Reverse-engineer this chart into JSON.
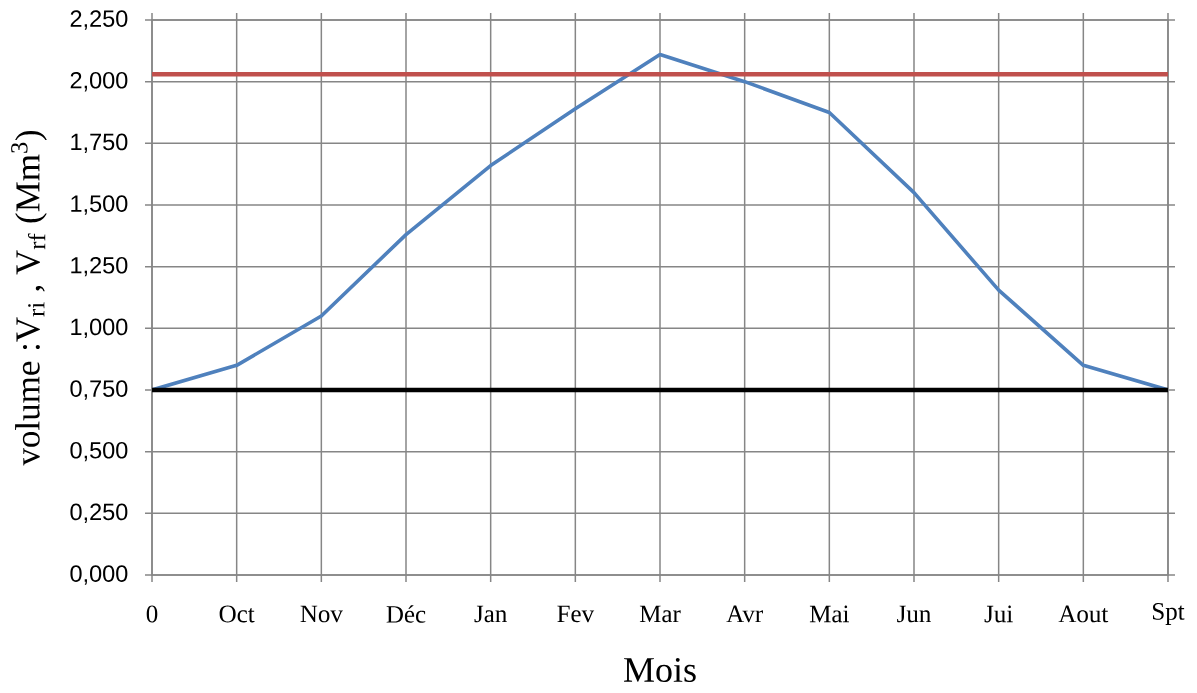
{
  "chart_data": {
    "type": "line",
    "xlabel": "Mois",
    "ylabel": "volume :V$_{ri}$ , V$_{rf}$ (Mm$^{3}$)",
    "categories": [
      "0",
      "Oct",
      "Nov",
      "Déc",
      "Jan",
      "Fev",
      "Mar",
      "Avr",
      "Mai",
      "Jun",
      "Jui",
      "Aout",
      "Spt"
    ],
    "series": [
      {
        "color": "#4f81bd",
        "values": [
          0.75,
          0.85,
          1.05,
          1.38,
          1.66,
          1.89,
          2.11,
          2.0,
          1.875,
          1.55,
          1.155,
          0.85,
          0.75
        ]
      }
    ],
    "ref_lines": [
      {
        "axis": "y",
        "value": 2.03,
        "color": "#c0504d"
      },
      {
        "axis": "y",
        "value": 0.75,
        "color": "#000000"
      }
    ],
    "ylim": [
      0,
      2.25
    ],
    "yticks": [
      {
        "value": 0,
        "label": "0,000"
      },
      {
        "value": 0.25,
        "label": "0,250"
      },
      {
        "value": 0.5,
        "label": "0,500"
      },
      {
        "value": 0.75,
        "label": "0,750"
      },
      {
        "value": 1.0,
        "label": "1,000"
      },
      {
        "value": 1.25,
        "label": "1,250"
      },
      {
        "value": 1.5,
        "label": "1,500"
      },
      {
        "value": 1.75,
        "label": "1,750"
      },
      {
        "value": 2.0,
        "label": "2,000"
      },
      {
        "value": 2.25,
        "label": "2,250"
      }
    ],
    "grid": true,
    "line_style": "solid"
  }
}
